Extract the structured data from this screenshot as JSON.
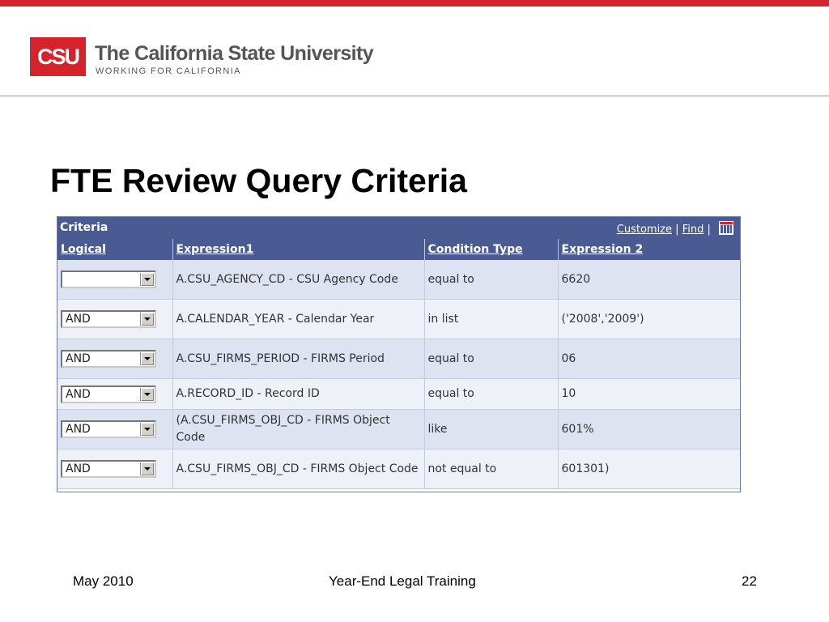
{
  "logo": {
    "mark": "CSU",
    "name": "The California State University",
    "tagline": "WORKING FOR CALIFORNIA"
  },
  "slide": {
    "title": "FTE Review Query Criteria"
  },
  "panel": {
    "title": "Criteria",
    "links": {
      "customize": "Customize",
      "separator": "|",
      "find": "Find",
      "separator2": "|"
    },
    "columns": [
      "Logical",
      "Expression1",
      "Condition Type",
      "Expression 2"
    ],
    "rows": [
      {
        "logical": "",
        "expression1": "A.CSU_AGENCY_CD - CSU Agency Code",
        "condition": "equal to",
        "expression2": "6620"
      },
      {
        "logical": "AND",
        "expression1": "A.CALENDAR_YEAR - Calendar Year",
        "condition": "in list",
        "expression2": "('2008','2009')"
      },
      {
        "logical": "AND",
        "expression1": "A.CSU_FIRMS_PERIOD - FIRMS Period",
        "condition": "equal to",
        "expression2": "06"
      },
      {
        "logical": "AND",
        "expression1": "A.RECORD_ID - Record ID",
        "condition": "equal to",
        "expression2": "10"
      },
      {
        "logical": "AND",
        "expression1": "(A.CSU_FIRMS_OBJ_CD - FIRMS Object Code",
        "condition": "like",
        "expression2": "601%"
      },
      {
        "logical": "AND",
        "expression1": "A.CSU_FIRMS_OBJ_CD - FIRMS Object Code",
        "condition": "not equal to",
        "expression2": "601301)"
      }
    ]
  },
  "footer": {
    "date": "May 2010",
    "center": "Year-End Legal Training",
    "page": "22"
  },
  "colors": {
    "brand_red": "#d6222b",
    "header_blue": "#4a5b94",
    "row_odd": "#dde3f1",
    "row_even": "#eef1f8"
  }
}
